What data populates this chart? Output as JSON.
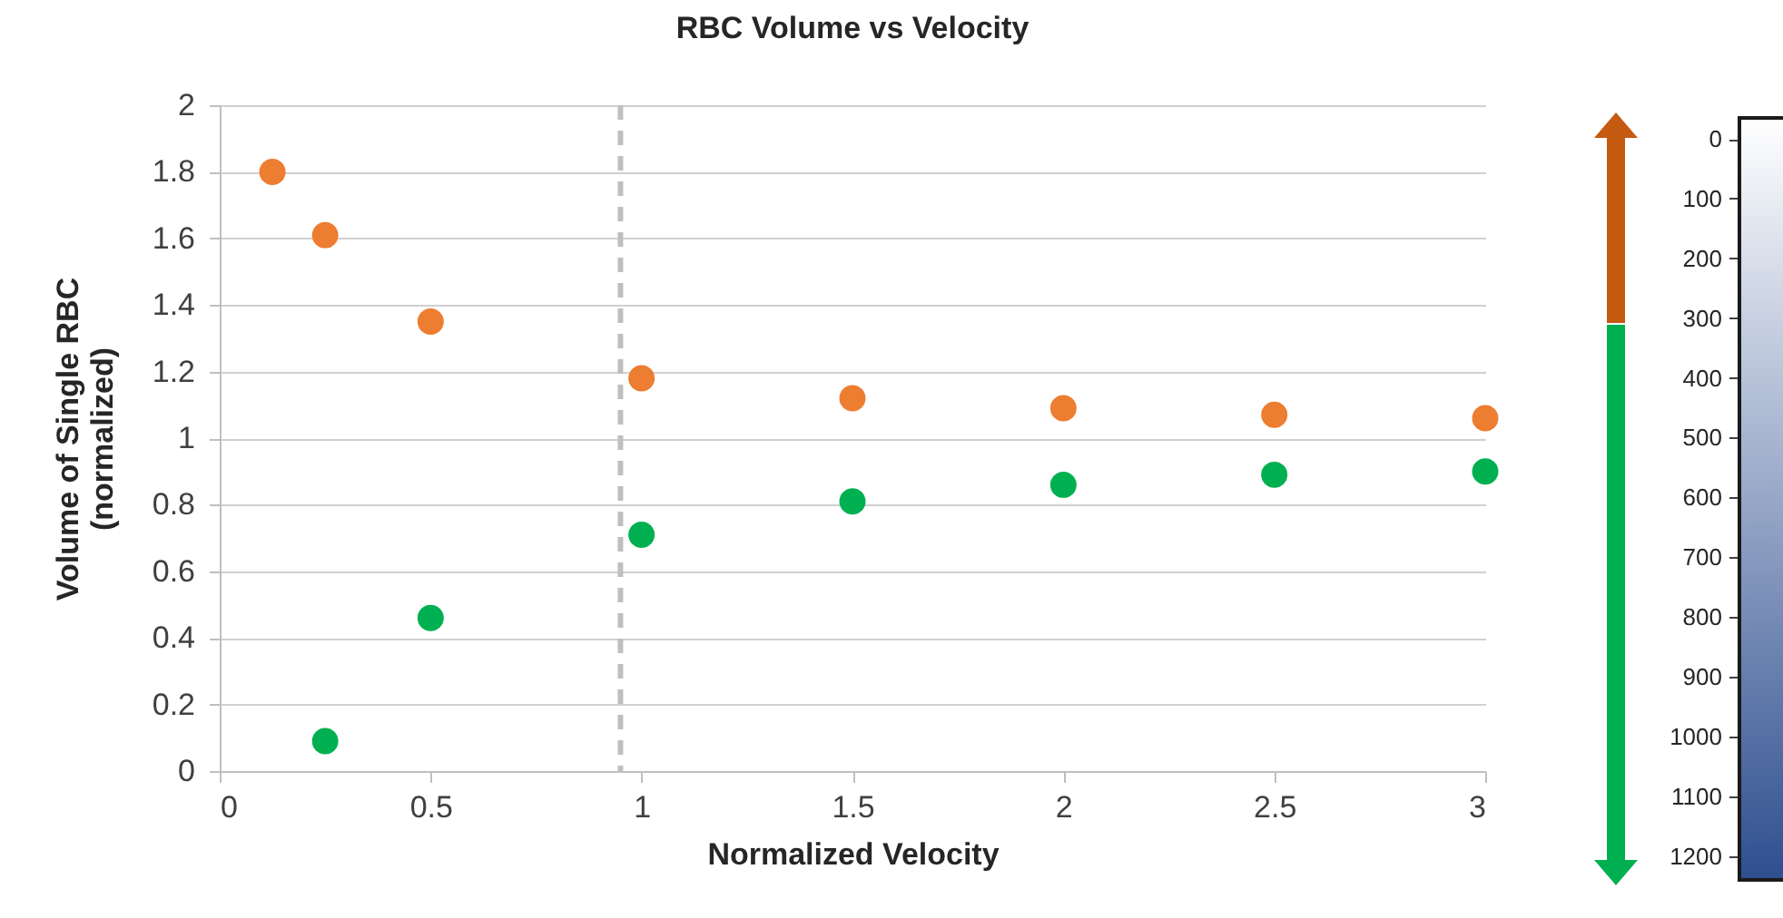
{
  "chart_data": [
    {
      "type": "scatter",
      "title": "RBC Volume vs Velocity",
      "xlabel": "Normalized Velocity",
      "ylabel": "Volume of Single RBC\n(normalized)",
      "xlim": [
        0,
        3
      ],
      "xticks": [
        0,
        0.5,
        1,
        1.5,
        2,
        2.5,
        3
      ],
      "ylim": [
        0,
        2
      ],
      "yticks": [
        0,
        0.2,
        0.4,
        0.6,
        0.8,
        1,
        1.2,
        1.4,
        1.6,
        1.8,
        2
      ],
      "grid": "y",
      "marker": "circle",
      "series": [
        {
          "color": "#ed7d31",
          "x": [
            0.125,
            0.25,
            0.5,
            1,
            1.5,
            2,
            2.5,
            3
          ],
          "values": [
            1.8,
            1.61,
            1.35,
            1.18,
            1.12,
            1.09,
            1.07,
            1.06
          ]
        },
        {
          "color": "#00b050",
          "x": [
            0.25,
            0.5,
            1,
            1.5,
            2,
            2.5,
            3
          ],
          "values": [
            0.09,
            0.46,
            0.71,
            0.81,
            0.86,
            0.89,
            0.9
          ]
        }
      ],
      "ref_lines": [
        {
          "axis": "x",
          "value": 0.95,
          "color": "#bfbfbf",
          "line_style": "dashed"
        }
      ],
      "clim": [
        -35,
        1240
      ],
      "cticks": [
        0,
        100,
        200,
        300,
        400,
        500,
        600,
        700,
        800,
        900,
        1000,
        1100,
        1200
      ]
    }
  ]
}
